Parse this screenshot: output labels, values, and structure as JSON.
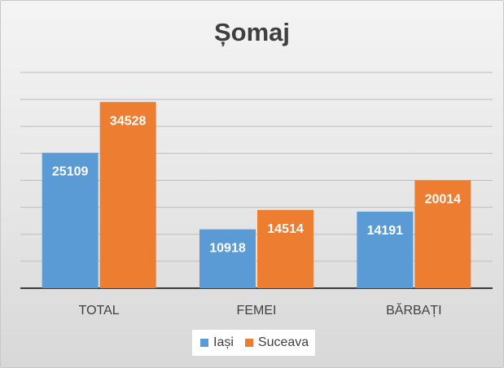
{
  "chart_data": {
    "type": "bar",
    "title": "Șomaj",
    "categories": [
      "TOTAL",
      "FEMEI",
      "BĂRBAȚI"
    ],
    "series": [
      {
        "name": "Iași",
        "color": "#5b9bd5",
        "values": [
          25109,
          10918,
          14191
        ]
      },
      {
        "name": "Suceava",
        "color": "#ed7d31",
        "values": [
          34528,
          14514,
          20014
        ]
      }
    ],
    "ylim": [
      0,
      40000
    ],
    "grid": true,
    "legend": "bottom"
  }
}
